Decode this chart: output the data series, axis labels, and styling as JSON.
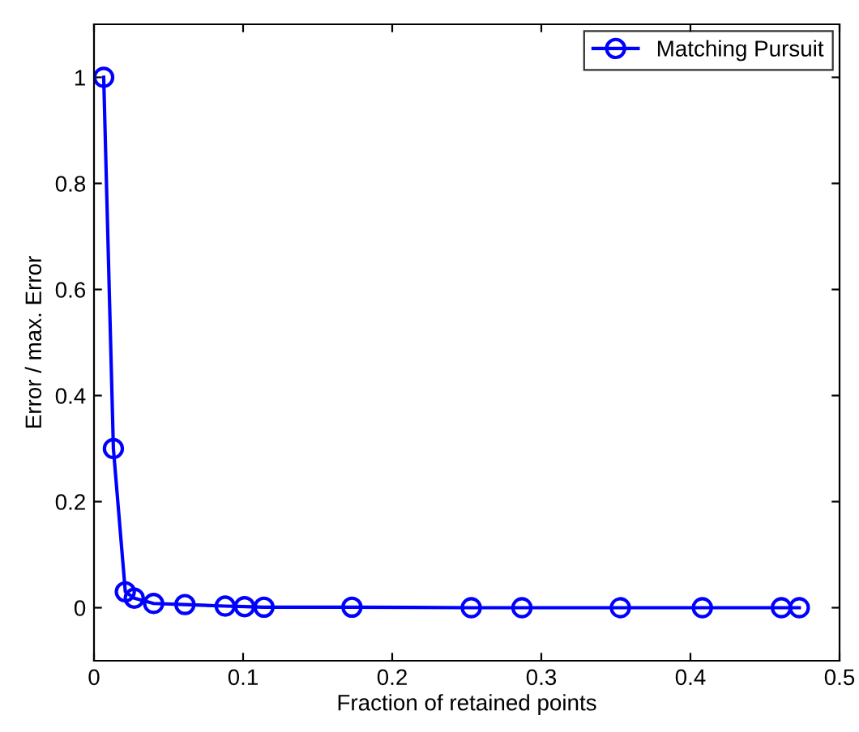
{
  "chart_data": {
    "type": "line",
    "xlabel": "Fraction of retained points",
    "ylabel": "Error / max. Error",
    "xlim": [
      0,
      0.5
    ],
    "ylim": [
      -0.1,
      1.1
    ],
    "xticks": [
      0,
      0.1,
      0.2,
      0.3,
      0.4,
      0.5
    ],
    "yticks": [
      0,
      0.2,
      0.4,
      0.6,
      0.8,
      1
    ],
    "x": [
      0.0065,
      0.013,
      0.021,
      0.027,
      0.04,
      0.061,
      0.088,
      0.101,
      0.114,
      0.173,
      0.253,
      0.287,
      0.353,
      0.408,
      0.461,
      0.473
    ],
    "series": [
      {
        "name": "Matching Pursuit",
        "color": "#0000ff",
        "values": [
          1,
          0.3,
          0.03,
          0.018,
          0.008,
          0.006,
          0.003,
          0.002,
          0.001,
          0.001,
          0,
          0,
          0,
          0,
          0,
          0
        ]
      }
    ],
    "marker": "circle",
    "line_style": "solid",
    "legend": "top right",
    "grid": false
  }
}
